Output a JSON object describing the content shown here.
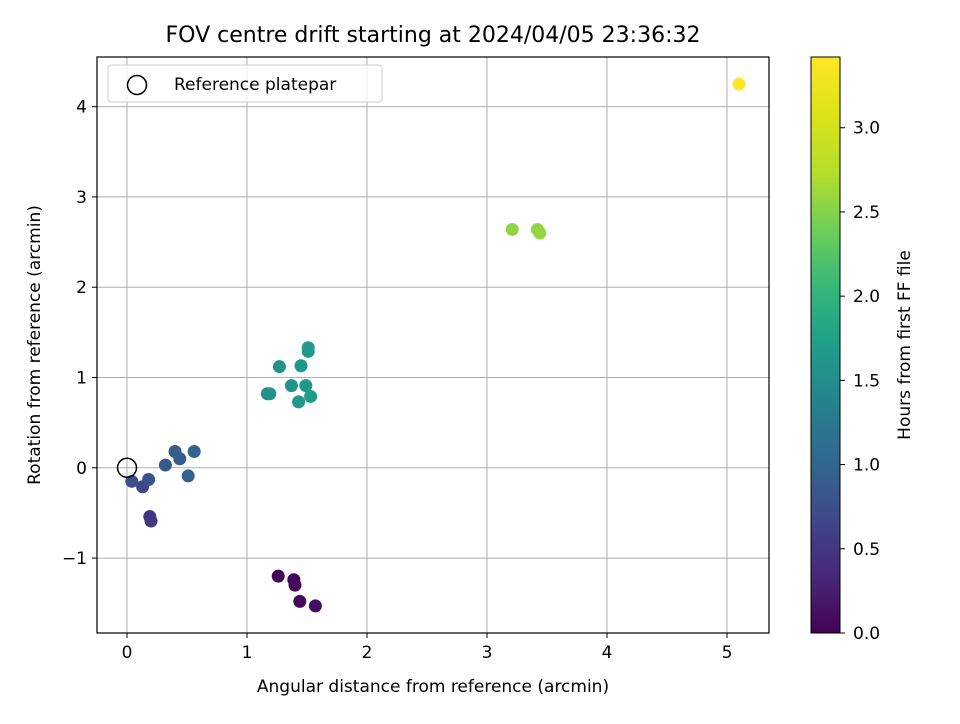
{
  "chart_data": {
    "type": "scatter",
    "title": "FOV centre drift starting at 2024/04/05 23:36:32",
    "xlabel": "Angular distance from reference (arcmin)",
    "ylabel": "Rotation from reference (arcmin)",
    "xlim": [
      -0.25,
      5.35
    ],
    "ylim": [
      -1.83,
      4.55
    ],
    "xticks": [
      0,
      1,
      2,
      3,
      4,
      5
    ],
    "xtick_labels": [
      "0",
      "1",
      "2",
      "3",
      "4",
      "5"
    ],
    "yticks": [
      -1,
      0,
      1,
      2,
      3,
      4
    ],
    "ytick_labels": [
      "−1",
      "0",
      "1",
      "2",
      "3",
      "4"
    ],
    "grid": true,
    "legend": {
      "placement": "top-left",
      "entries": [
        {
          "label": "Reference platepar",
          "marker": "open-circle"
        }
      ]
    },
    "reference_point": {
      "x": 0,
      "y": 0
    },
    "colorbar": {
      "label": "Hours from first FF file",
      "colormap": "viridis",
      "range": [
        0.0,
        3.42
      ],
      "ticks": [
        0.0,
        0.5,
        1.0,
        1.5,
        2.0,
        2.5,
        3.0
      ],
      "tick_labels": [
        "0.0",
        "0.5",
        "1.0",
        "1.5",
        "2.0",
        "2.5",
        "3.0"
      ]
    },
    "series": [
      {
        "points": [
          {
            "x": 1.26,
            "y": -1.2,
            "t": 0.02
          },
          {
            "x": 1.39,
            "y": -1.24,
            "t": 0.04
          },
          {
            "x": 1.4,
            "y": -1.3,
            "t": 0.06
          },
          {
            "x": 1.44,
            "y": -1.48,
            "t": 0.08
          },
          {
            "x": 1.57,
            "y": -1.53,
            "t": 0.1
          },
          {
            "x": 0.19,
            "y": -0.54,
            "t": 0.48
          },
          {
            "x": 0.2,
            "y": -0.59,
            "t": 0.5
          },
          {
            "x": 0.13,
            "y": -0.21,
            "t": 0.65
          },
          {
            "x": 0.04,
            "y": -0.15,
            "t": 0.75
          },
          {
            "x": 0.18,
            "y": -0.13,
            "t": 0.8
          },
          {
            "x": 0.32,
            "y": 0.03,
            "t": 0.85
          },
          {
            "x": 0.4,
            "y": 0.18,
            "t": 0.9
          },
          {
            "x": 0.44,
            "y": 0.1,
            "t": 0.92
          },
          {
            "x": 0.51,
            "y": -0.09,
            "t": 0.95
          },
          {
            "x": 0.56,
            "y": 0.18,
            "t": 0.98
          },
          {
            "x": 1.17,
            "y": 0.82,
            "t": 1.55
          },
          {
            "x": 1.19,
            "y": 0.82,
            "t": 1.56
          },
          {
            "x": 1.27,
            "y": 1.12,
            "t": 1.58
          },
          {
            "x": 1.37,
            "y": 0.91,
            "t": 1.6
          },
          {
            "x": 1.43,
            "y": 0.73,
            "t": 1.62
          },
          {
            "x": 1.45,
            "y": 1.13,
            "t": 1.63
          },
          {
            "x": 1.49,
            "y": 0.91,
            "t": 1.64
          },
          {
            "x": 1.51,
            "y": 1.29,
            "t": 1.65
          },
          {
            "x": 1.51,
            "y": 1.33,
            "t": 1.66
          },
          {
            "x": 1.53,
            "y": 0.79,
            "t": 1.67
          },
          {
            "x": 3.21,
            "y": 2.64,
            "t": 2.55
          },
          {
            "x": 3.42,
            "y": 2.64,
            "t": 2.56
          },
          {
            "x": 3.44,
            "y": 2.6,
            "t": 2.57
          },
          {
            "x": 5.1,
            "y": 4.25,
            "t": 3.42
          }
        ]
      }
    ]
  }
}
